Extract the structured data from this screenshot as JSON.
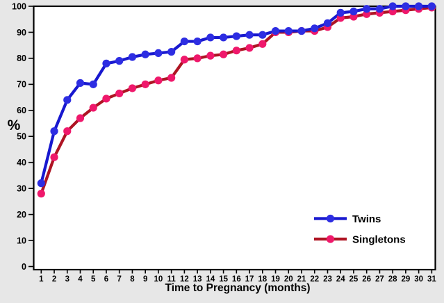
{
  "chart_data": {
    "type": "line",
    "x": [
      1,
      2,
      3,
      4,
      5,
      6,
      7,
      8,
      9,
      10,
      11,
      12,
      13,
      14,
      15,
      16,
      17,
      18,
      19,
      20,
      21,
      22,
      23,
      24,
      25,
      26,
      27,
      28,
      29,
      30,
      31
    ],
    "series": [
      {
        "name": "Twins",
        "line_color": "#1818CF",
        "marker_color": "#2D2DE2",
        "values": [
          32,
          52,
          64,
          70.5,
          70,
          78,
          79,
          80.5,
          81.5,
          82,
          82.5,
          86.5,
          86.5,
          88,
          88,
          88.5,
          89,
          89,
          90.5,
          90.5,
          90.5,
          91.5,
          93.5,
          97.5,
          98,
          99,
          99,
          100,
          100,
          100,
          100
        ]
      },
      {
        "name": "Singletons",
        "line_color": "#AE1423",
        "marker_color": "#EF186B",
        "values": [
          28,
          42,
          52,
          57,
          61,
          64.5,
          66.5,
          68.5,
          70,
          71.5,
          72.5,
          79.5,
          80,
          81,
          81.5,
          83,
          84,
          85.5,
          90,
          90,
          90.5,
          90.5,
          92,
          95.5,
          96,
          97,
          97.5,
          98,
          98.5,
          99,
          99.5
        ]
      }
    ],
    "xlabel": "Time to Pregnancy (months)",
    "ylabel": "%",
    "xticks": [
      1,
      2,
      3,
      4,
      5,
      6,
      7,
      8,
      9,
      10,
      11,
      12,
      13,
      14,
      15,
      16,
      17,
      18,
      19,
      20,
      21,
      22,
      23,
      24,
      25,
      26,
      27,
      28,
      29,
      30,
      31
    ],
    "yticks": [
      0,
      10,
      20,
      30,
      40,
      50,
      60,
      70,
      80,
      90,
      100
    ],
    "ylim": [
      0,
      100
    ],
    "xlim": [
      1,
      31
    ],
    "grid": false,
    "legend_position": "lower right",
    "background_color": "#E7E7E7",
    "plot_background_color": "#FFFFFF",
    "axis_color": "#000000"
  }
}
